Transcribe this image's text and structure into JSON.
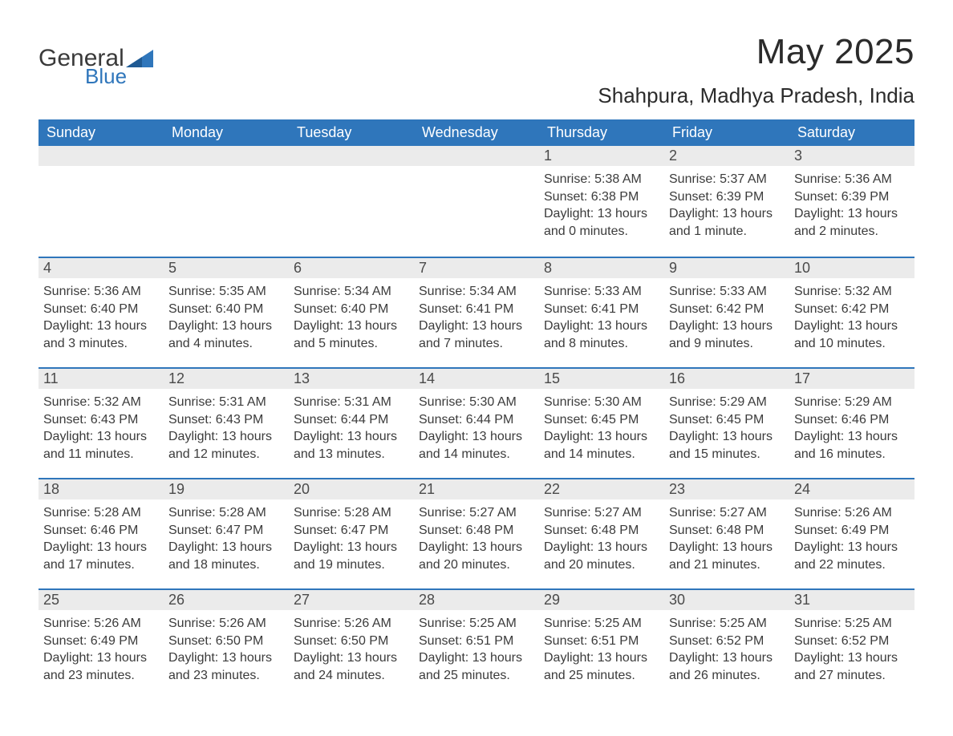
{
  "brand": {
    "name_part1": "General",
    "name_part2": "Blue",
    "accent_color": "#2f76bb"
  },
  "title": "May 2025",
  "location": "Shahpura, Madhya Pradesh, India",
  "colors": {
    "header_bg": "#2f76bb",
    "header_text": "#ffffff",
    "daynum_bg": "#ebebeb",
    "body_text": "#3b3b3b",
    "page_bg": "#ffffff",
    "rule": "#2f76bb"
  },
  "type": "table",
  "days_of_week": [
    "Sunday",
    "Monday",
    "Tuesday",
    "Wednesday",
    "Thursday",
    "Friday",
    "Saturday"
  ],
  "weeks": [
    [
      {
        "day": null
      },
      {
        "day": null
      },
      {
        "day": null
      },
      {
        "day": null
      },
      {
        "day": 1,
        "sunrise": "5:38 AM",
        "sunset": "6:38 PM",
        "daylight": "13 hours and 0 minutes."
      },
      {
        "day": 2,
        "sunrise": "5:37 AM",
        "sunset": "6:39 PM",
        "daylight": "13 hours and 1 minute."
      },
      {
        "day": 3,
        "sunrise": "5:36 AM",
        "sunset": "6:39 PM",
        "daylight": "13 hours and 2 minutes."
      }
    ],
    [
      {
        "day": 4,
        "sunrise": "5:36 AM",
        "sunset": "6:40 PM",
        "daylight": "13 hours and 3 minutes."
      },
      {
        "day": 5,
        "sunrise": "5:35 AM",
        "sunset": "6:40 PM",
        "daylight": "13 hours and 4 minutes."
      },
      {
        "day": 6,
        "sunrise": "5:34 AM",
        "sunset": "6:40 PM",
        "daylight": "13 hours and 5 minutes."
      },
      {
        "day": 7,
        "sunrise": "5:34 AM",
        "sunset": "6:41 PM",
        "daylight": "13 hours and 7 minutes."
      },
      {
        "day": 8,
        "sunrise": "5:33 AM",
        "sunset": "6:41 PM",
        "daylight": "13 hours and 8 minutes."
      },
      {
        "day": 9,
        "sunrise": "5:33 AM",
        "sunset": "6:42 PM",
        "daylight": "13 hours and 9 minutes."
      },
      {
        "day": 10,
        "sunrise": "5:32 AM",
        "sunset": "6:42 PM",
        "daylight": "13 hours and 10 minutes."
      }
    ],
    [
      {
        "day": 11,
        "sunrise": "5:32 AM",
        "sunset": "6:43 PM",
        "daylight": "13 hours and 11 minutes."
      },
      {
        "day": 12,
        "sunrise": "5:31 AM",
        "sunset": "6:43 PM",
        "daylight": "13 hours and 12 minutes."
      },
      {
        "day": 13,
        "sunrise": "5:31 AM",
        "sunset": "6:44 PM",
        "daylight": "13 hours and 13 minutes."
      },
      {
        "day": 14,
        "sunrise": "5:30 AM",
        "sunset": "6:44 PM",
        "daylight": "13 hours and 14 minutes."
      },
      {
        "day": 15,
        "sunrise": "5:30 AM",
        "sunset": "6:45 PM",
        "daylight": "13 hours and 14 minutes."
      },
      {
        "day": 16,
        "sunrise": "5:29 AM",
        "sunset": "6:45 PM",
        "daylight": "13 hours and 15 minutes."
      },
      {
        "day": 17,
        "sunrise": "5:29 AM",
        "sunset": "6:46 PM",
        "daylight": "13 hours and 16 minutes."
      }
    ],
    [
      {
        "day": 18,
        "sunrise": "5:28 AM",
        "sunset": "6:46 PM",
        "daylight": "13 hours and 17 minutes."
      },
      {
        "day": 19,
        "sunrise": "5:28 AM",
        "sunset": "6:47 PM",
        "daylight": "13 hours and 18 minutes."
      },
      {
        "day": 20,
        "sunrise": "5:28 AM",
        "sunset": "6:47 PM",
        "daylight": "13 hours and 19 minutes."
      },
      {
        "day": 21,
        "sunrise": "5:27 AM",
        "sunset": "6:48 PM",
        "daylight": "13 hours and 20 minutes."
      },
      {
        "day": 22,
        "sunrise": "5:27 AM",
        "sunset": "6:48 PM",
        "daylight": "13 hours and 20 minutes."
      },
      {
        "day": 23,
        "sunrise": "5:27 AM",
        "sunset": "6:48 PM",
        "daylight": "13 hours and 21 minutes."
      },
      {
        "day": 24,
        "sunrise": "5:26 AM",
        "sunset": "6:49 PM",
        "daylight": "13 hours and 22 minutes."
      }
    ],
    [
      {
        "day": 25,
        "sunrise": "5:26 AM",
        "sunset": "6:49 PM",
        "daylight": "13 hours and 23 minutes."
      },
      {
        "day": 26,
        "sunrise": "5:26 AM",
        "sunset": "6:50 PM",
        "daylight": "13 hours and 23 minutes."
      },
      {
        "day": 27,
        "sunrise": "5:26 AM",
        "sunset": "6:50 PM",
        "daylight": "13 hours and 24 minutes."
      },
      {
        "day": 28,
        "sunrise": "5:25 AM",
        "sunset": "6:51 PM",
        "daylight": "13 hours and 25 minutes."
      },
      {
        "day": 29,
        "sunrise": "5:25 AM",
        "sunset": "6:51 PM",
        "daylight": "13 hours and 25 minutes."
      },
      {
        "day": 30,
        "sunrise": "5:25 AM",
        "sunset": "6:52 PM",
        "daylight": "13 hours and 26 minutes."
      },
      {
        "day": 31,
        "sunrise": "5:25 AM",
        "sunset": "6:52 PM",
        "daylight": "13 hours and 27 minutes."
      }
    ]
  ],
  "labels": {
    "sunrise": "Sunrise: ",
    "sunset": "Sunset: ",
    "daylight": "Daylight: "
  }
}
